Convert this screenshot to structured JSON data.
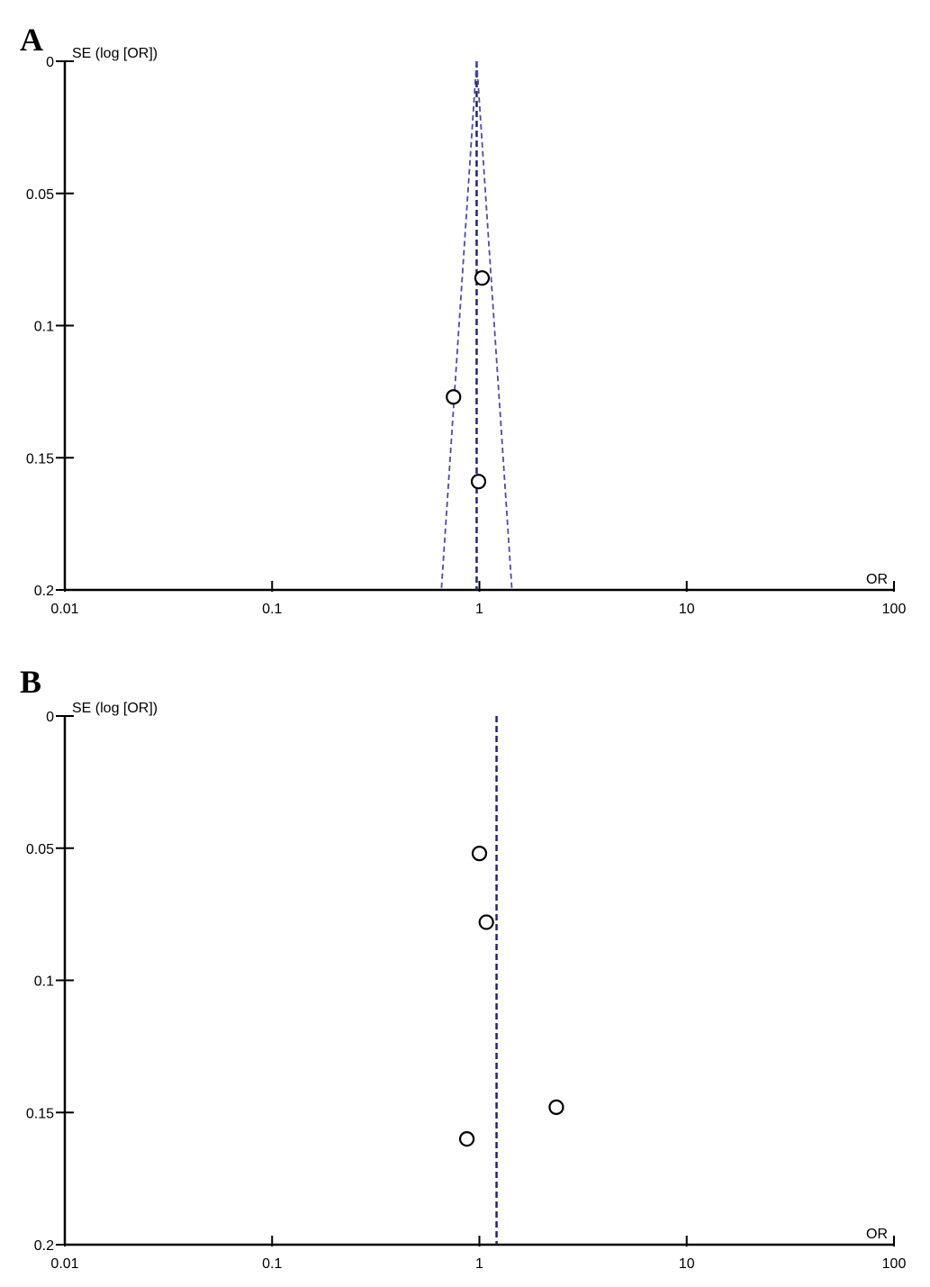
{
  "chart_data": [
    {
      "type": "scatter",
      "panel": "A",
      "ylabel": "SE (log [OR])",
      "xlabel": "OR",
      "x_scale": "log",
      "xlim": [
        0.01,
        100
      ],
      "ylim": [
        0,
        0.2
      ],
      "y_inverted": true,
      "x_ticks": [
        "0.01",
        "0.1",
        "1",
        "10",
        "100"
      ],
      "y_ticks": [
        "0",
        "0.05",
        "0.1",
        "0.15",
        "0.2"
      ],
      "pooled_or": 0.97,
      "funnel": true,
      "points": [
        {
          "or": 1.03,
          "se": 0.082
        },
        {
          "or": 0.75,
          "se": 0.127
        },
        {
          "or": 0.99,
          "se": 0.159
        }
      ]
    },
    {
      "type": "scatter",
      "panel": "B",
      "ylabel": "SE (log [OR])",
      "xlabel": "OR",
      "x_scale": "log",
      "xlim": [
        0.01,
        100
      ],
      "ylim": [
        0,
        0.2
      ],
      "y_inverted": true,
      "x_ticks": [
        "0.01",
        "0.1",
        "1",
        "10",
        "100"
      ],
      "y_ticks": [
        "0",
        "0.05",
        "0.1",
        "0.15",
        "0.2"
      ],
      "pooled_or": 1.21,
      "funnel": false,
      "points": [
        {
          "or": 1.0,
          "se": 0.052
        },
        {
          "or": 1.08,
          "se": 0.078
        },
        {
          "or": 2.35,
          "se": 0.148
        },
        {
          "or": 0.87,
          "se": 0.16
        }
      ]
    }
  ],
  "colors": {
    "axis": "#000000",
    "reference_line": "#25256b",
    "funnel_line": "#4d4d9a",
    "marker_stroke": "#000000",
    "marker_fill": "#ffffff"
  }
}
